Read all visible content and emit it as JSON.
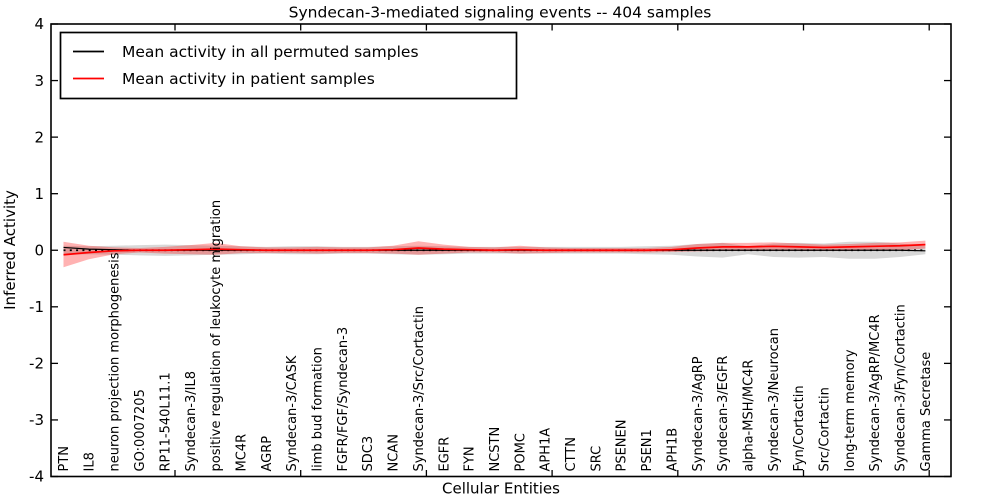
{
  "figure": {
    "title": "Syndecan-3-mediated signaling events -- 404 samples",
    "xlabel": "Cellular Entities",
    "ylabel": "Inferred Activity"
  },
  "legend": {
    "position": "upper left",
    "items": [
      {
        "label": "Mean activity in all permuted samples",
        "color": "#000000"
      },
      {
        "label": "Mean activity in patient samples",
        "color": "#ff0000"
      }
    ]
  },
  "chart_data": {
    "type": "line",
    "title": "Syndecan-3-mediated signaling events -- 404 samples",
    "xlabel": "Cellular Entities",
    "ylabel": "Inferred Activity",
    "ylim": [
      -4,
      4
    ],
    "yticks": [
      -4,
      -3,
      -2,
      -1,
      0,
      1,
      2,
      3,
      4
    ],
    "grid": false,
    "legend_position": "upper left",
    "baseline": {
      "value": 0,
      "style": "dotted",
      "color": "#000000"
    },
    "categories": [
      "PTN",
      "IL8",
      "neuron projection morphogenesis",
      "GO:0007205",
      "RP11-540L11.1",
      "Syndecan-3/IL8",
      "positive regulation of leukocyte migration",
      "MC4R",
      "AGRP",
      "Syndecan-3/CASK",
      "limb bud formation",
      "FGFR/FGF/Syndecan-3",
      "SDC3",
      "NCAN",
      "Syndecan-3/Src/Cortactin",
      "EGFR",
      "FYN",
      "NCSTN",
      "POMC",
      "APH1A",
      "CTTN",
      "SRC",
      "PSENEN",
      "PSEN1",
      "APH1B",
      "Syndecan-3/AgRP",
      "Syndecan-3/EGFR",
      "alpha-MSH/MC4R",
      "Syndecan-3/Neurocan",
      "Fyn/Cortactin",
      "Src/Cortactin",
      "long-term memory",
      "Syndecan-3/AgRP/MC4R",
      "Syndecan-3/Fyn/Cortactin",
      "Gamma Secretase"
    ],
    "series": [
      {
        "name": "Mean activity in all permuted samples",
        "color": "#000000",
        "line_style": "dotted",
        "values": [
          0.05,
          0.02,
          0.01,
          0,
          0,
          0,
          0,
          0,
          0,
          0,
          0,
          0,
          0,
          0,
          0,
          0,
          0,
          0,
          0,
          0,
          0,
          0,
          0,
          0,
          0,
          0,
          0,
          0,
          0,
          0,
          0,
          0,
          0,
          0,
          -0.01
        ],
        "band": {
          "fill": "rgba(125,125,125,0.30)",
          "upper": [
            0.08,
            0.07,
            0.08,
            0.09,
            0.1,
            0.09,
            0.08,
            0.07,
            0.06,
            0.07,
            0.07,
            0.06,
            0.06,
            0.07,
            0.08,
            0.07,
            0.06,
            0.06,
            0.06,
            0.06,
            0.06,
            0.06,
            0.06,
            0.07,
            0.08,
            0.11,
            0.13,
            0.07,
            0.12,
            0.13,
            0.12,
            0.15,
            0.15,
            0.12,
            0.07
          ],
          "lower": [
            -0.08,
            -0.07,
            -0.08,
            -0.09,
            -0.1,
            -0.09,
            -0.08,
            -0.07,
            -0.06,
            -0.07,
            -0.07,
            -0.06,
            -0.06,
            -0.07,
            -0.08,
            -0.07,
            -0.06,
            -0.06,
            -0.06,
            -0.06,
            -0.06,
            -0.06,
            -0.06,
            -0.07,
            -0.08,
            -0.11,
            -0.13,
            -0.07,
            -0.12,
            -0.13,
            -0.12,
            -0.15,
            -0.15,
            -0.12,
            -0.07
          ]
        }
      },
      {
        "name": "Mean activity in patient samples",
        "color": "#ff0000",
        "line_style": "solid",
        "values": [
          -0.08,
          -0.04,
          -0.01,
          0,
          0,
          0.01,
          0.02,
          0.01,
          0,
          0,
          0,
          0,
          0,
          0.01,
          0.04,
          0.02,
          0.01,
          0,
          0.01,
          0,
          0,
          0,
          0,
          0,
          0.01,
          0.04,
          0.06,
          0.06,
          0.07,
          0.06,
          0.05,
          0.06,
          0.07,
          0.08,
          0.1
        ],
        "band": {
          "fill": "rgba(255,0,0,0.30)",
          "upper": [
            0.15,
            0.08,
            0.05,
            0.04,
            0.06,
            0.09,
            0.13,
            0.07,
            0.05,
            0.05,
            0.06,
            0.05,
            0.05,
            0.08,
            0.16,
            0.1,
            0.06,
            0.05,
            0.08,
            0.05,
            0.04,
            0.04,
            0.04,
            0.04,
            0.06,
            0.11,
            0.13,
            0.13,
            0.14,
            0.12,
            0.1,
            0.11,
            0.13,
            0.14,
            0.17
          ],
          "lower": [
            -0.3,
            -0.16,
            -0.07,
            -0.04,
            -0.06,
            -0.07,
            -0.08,
            -0.05,
            -0.05,
            -0.05,
            -0.06,
            -0.05,
            -0.05,
            -0.06,
            -0.08,
            -0.06,
            -0.04,
            -0.04,
            -0.06,
            -0.05,
            -0.04,
            -0.04,
            -0.04,
            -0.04,
            -0.03,
            -0.02,
            -0.01,
            -0.01,
            -0.01,
            -0.01,
            -0.01,
            -0.01,
            0.0,
            0.0,
            0.03
          ]
        }
      }
    ]
  }
}
